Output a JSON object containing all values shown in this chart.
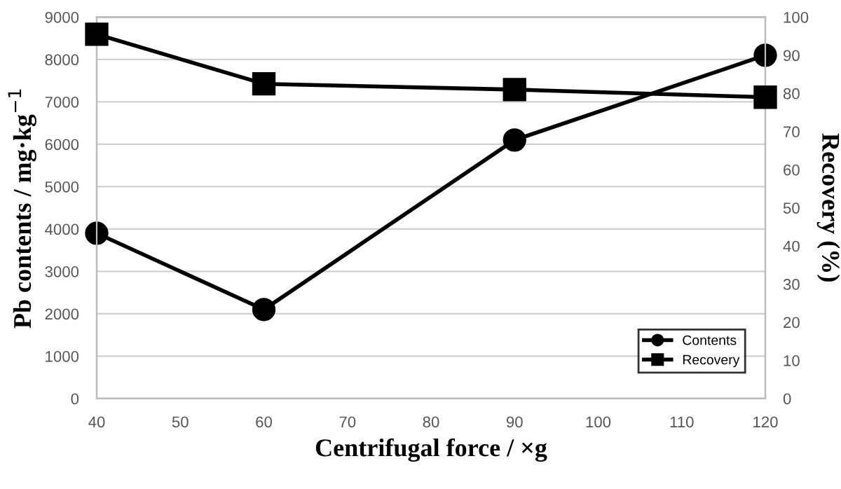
{
  "chart_data": {
    "type": "line",
    "xlabel": "Centrifugal force / ×g",
    "ylabel": "Pb contents / mg·kg$^{−1}$",
    "y2label": "Recovery (%)",
    "x": [
      40,
      60,
      90,
      120
    ],
    "series": [
      {
        "name": "Contents",
        "color": "#000000",
        "marker": "circle",
        "values": [
          3900,
          2100,
          6100,
          8100
        ]
      },
      {
        "name": "Recovery",
        "color": "#000000",
        "marker": "square",
        "axis": "y2",
        "values": [
          95.5,
          82.5,
          81,
          79
        ]
      }
    ],
    "xlim": [
      40,
      120
    ],
    "xticks": [
      40,
      50,
      60,
      70,
      80,
      90,
      100,
      110,
      120
    ],
    "ylim": [
      0,
      9000
    ],
    "yticks": [
      0,
      1000,
      2000,
      3000,
      4000,
      5000,
      6000,
      7000,
      8000,
      9000
    ],
    "y2lim": [
      0,
      100
    ],
    "y2ticks": [
      0,
      10,
      20,
      30,
      40,
      50,
      60,
      70,
      80,
      90,
      100
    ],
    "grid": "y",
    "legend": "bottom right",
    "line_style": "solid"
  }
}
